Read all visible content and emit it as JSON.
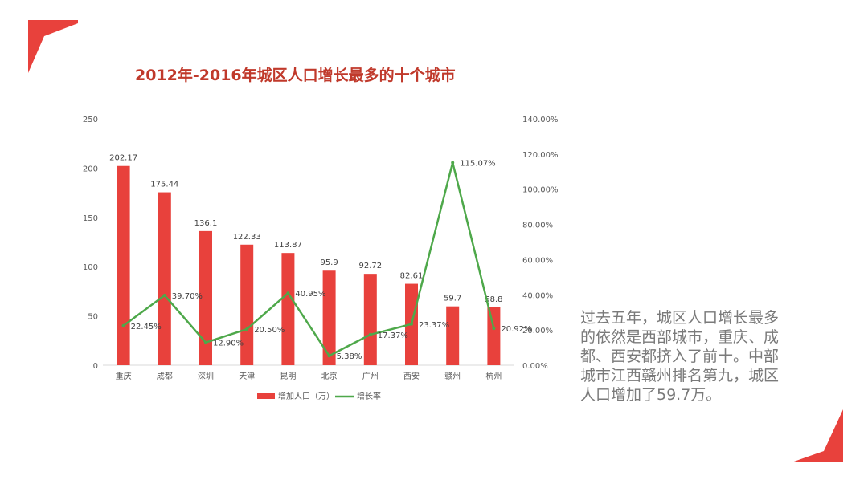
{
  "slide": {
    "title": "2012年-2016年城区人口增长最多的十个城市",
    "summary": "过去五年，城区人口增长最多的依然是西部城市，重庆、成都、西安都挤入了前十。中部城市江西赣州排名第九，城区人口增加了59.7万。",
    "accent_color": "#e8413c"
  },
  "chart_data": {
    "type": "bar",
    "title": "2012年-2016年城区人口增长最多的十个城市",
    "categories": [
      "重庆",
      "成都",
      "深圳",
      "天津",
      "昆明",
      "北京",
      "广州",
      "西安",
      "赣州",
      "杭州"
    ],
    "series": [
      {
        "name": "增加人口（万）",
        "type": "bar",
        "axis": "left",
        "color": "#e8413c",
        "values": [
          202.17,
          175.44,
          136.1,
          122.33,
          113.87,
          95.9,
          92.72,
          82.61,
          59.7,
          58.8
        ],
        "labels": [
          "202.17",
          "175.44",
          "136.1",
          "122.33",
          "113.87",
          "95.9",
          "92.72",
          "82.61",
          "59.7",
          "58.8"
        ]
      },
      {
        "name": "增长率",
        "type": "line",
        "axis": "right",
        "color": "#4ea84a",
        "values": [
          22.45,
          39.7,
          12.9,
          20.5,
          40.95,
          5.38,
          17.37,
          23.37,
          115.07,
          20.92
        ],
        "labels": [
          "22.45%",
          "39.70%",
          "12.90%",
          "20.50%",
          "40.95%",
          "5.38%",
          "17.37%",
          "23.37%",
          "115.07%",
          "20.92%"
        ]
      }
    ],
    "y_left": {
      "min": 0,
      "max": 250,
      "ticks": [
        "0",
        "50",
        "100",
        "150",
        "200",
        "250"
      ]
    },
    "y_right": {
      "min": 0,
      "max": 140,
      "ticks": [
        "0.00%",
        "20.00%",
        "40.00%",
        "60.00%",
        "80.00%",
        "100.00%",
        "120.00%",
        "140.00%"
      ]
    },
    "grid": false,
    "legend_position": "bottom"
  }
}
